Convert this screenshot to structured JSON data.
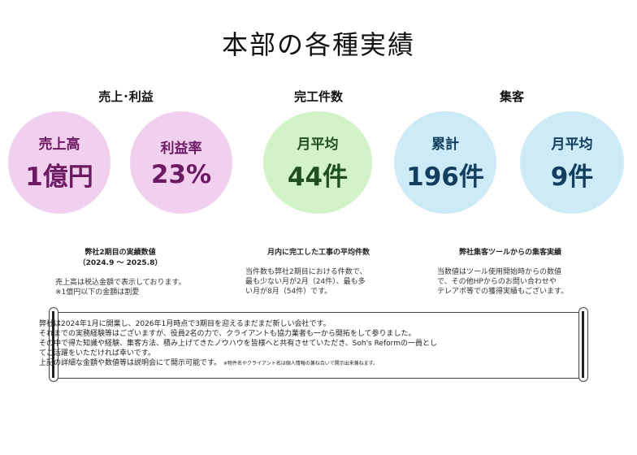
{
  "page_title": "本部の各種実績",
  "sections": {
    "sales": {
      "heading": "売上･利益",
      "circles": [
        {
          "label": "売上高",
          "value": "1億円"
        },
        {
          "label": "利益率",
          "value": "23%"
        }
      ],
      "caption_title": "弊社2期目の実績数値",
      "caption_range": "（2024.9 ～ 2025.8）",
      "desc_lines": [
        "売上高は税込金額で表示しております。",
        "※1億円以下の金額は割愛"
      ]
    },
    "completed": {
      "heading": "完工件数",
      "circle": {
        "label": "月平均",
        "value": "44件"
      },
      "caption_title": "月内に完工した工事の平均件数",
      "desc_lines": [
        "当件数も弊社2期目における件数で、",
        "最も少ない月が2月（24件）、最も多",
        "い月が8月（54件）です。"
      ]
    },
    "customers": {
      "heading": "集客",
      "circles": [
        {
          "label": "累計",
          "value": "196件"
        },
        {
          "label": "月平均",
          "value": "9件"
        }
      ],
      "caption_title": "弊社集客ツールからの集客実績",
      "desc_lines": [
        "当数値はツール使用開始時からの数値",
        "で、その他HPからのお問い合わせや",
        "テレアポ等での獲得実績もございます。"
      ]
    }
  },
  "scroll": {
    "lines": [
      "弊社は2024年1月に開業し、2026年1月時点で3期目を迎えるまだまだ新しい会社です。",
      "それまでの実務経験等はございますが、役員2名の力で、クライアントも協力業者も一から開拓をして参りました。",
      "その中で得た知識や経験、集客方法、積み上げてきたノウハウを皆様へと共有させていただき、Soh's Reformの一員とし",
      "てご活躍をいただければ幸いです。"
    ],
    "last_line": "上記の詳細な金額や数値等は説明会にて開示可能です。",
    "note": "※物件名やクライアント名は個人情報の兼ね合いで開示出来兼ねます。"
  },
  "colors": {
    "pink": "#f1cfee",
    "green": "#d2f2c7",
    "blue": "#cdeaf7"
  }
}
